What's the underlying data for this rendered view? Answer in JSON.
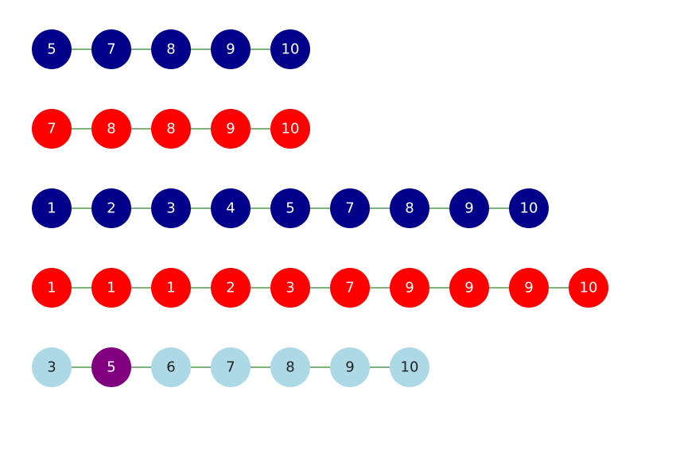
{
  "colors": {
    "navy": "#00008b",
    "red": "#ff0000",
    "lightblue": "#add8e6",
    "purple": "#800080",
    "link": "#006400",
    "text_light": "#ffffff",
    "text_dark": "#222222"
  },
  "lists": [
    {
      "nodes": [
        {
          "value": "5",
          "color": "navy"
        },
        {
          "value": "7",
          "color": "navy"
        },
        {
          "value": "8",
          "color": "navy"
        },
        {
          "value": "9",
          "color": "navy"
        },
        {
          "value": "10",
          "color": "navy"
        }
      ]
    },
    {
      "nodes": [
        {
          "value": "7",
          "color": "red"
        },
        {
          "value": "8",
          "color": "red"
        },
        {
          "value": "8",
          "color": "red"
        },
        {
          "value": "9",
          "color": "red"
        },
        {
          "value": "10",
          "color": "red"
        }
      ]
    },
    {
      "nodes": [
        {
          "value": "1",
          "color": "navy"
        },
        {
          "value": "2",
          "color": "navy"
        },
        {
          "value": "3",
          "color": "navy"
        },
        {
          "value": "4",
          "color": "navy"
        },
        {
          "value": "5",
          "color": "navy"
        },
        {
          "value": "7",
          "color": "navy"
        },
        {
          "value": "8",
          "color": "navy"
        },
        {
          "value": "9",
          "color": "navy"
        },
        {
          "value": "10",
          "color": "navy"
        }
      ]
    },
    {
      "nodes": [
        {
          "value": "1",
          "color": "red"
        },
        {
          "value": "1",
          "color": "red"
        },
        {
          "value": "1",
          "color": "red"
        },
        {
          "value": "2",
          "color": "red"
        },
        {
          "value": "3",
          "color": "red"
        },
        {
          "value": "7",
          "color": "red"
        },
        {
          "value": "9",
          "color": "red"
        },
        {
          "value": "9",
          "color": "red"
        },
        {
          "value": "9",
          "color": "red"
        },
        {
          "value": "10",
          "color": "red"
        }
      ]
    },
    {
      "nodes": [
        {
          "value": "3",
          "color": "lightblue"
        },
        {
          "value": "5",
          "color": "purple"
        },
        {
          "value": "6",
          "color": "lightblue"
        },
        {
          "value": "7",
          "color": "lightblue"
        },
        {
          "value": "8",
          "color": "lightblue"
        },
        {
          "value": "9",
          "color": "lightblue"
        },
        {
          "value": "10",
          "color": "lightblue"
        }
      ]
    }
  ]
}
